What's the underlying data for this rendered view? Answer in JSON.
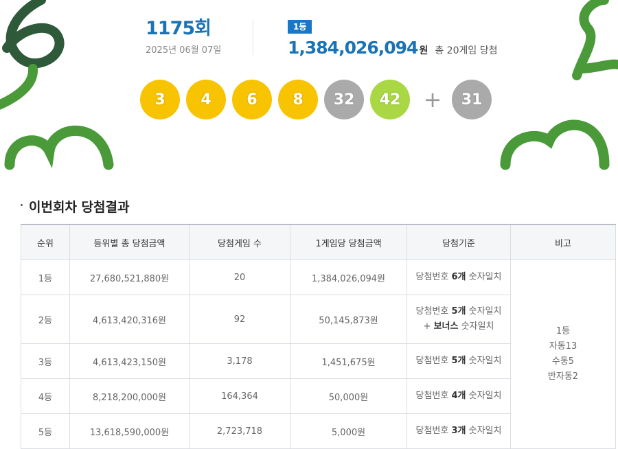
{
  "header": {
    "round_number": "1175",
    "round_suffix": "회",
    "draw_date": "2025년 06월 07일",
    "first_prize_badge": "1등",
    "first_prize_amount": "1,384,026,094",
    "first_prize_unit": "원",
    "first_prize_note": "총 20게임 당첨"
  },
  "balls": [
    {
      "number": "3",
      "color": "#f8c300"
    },
    {
      "number": "4",
      "color": "#f8c300"
    },
    {
      "number": "6",
      "color": "#f8c300"
    },
    {
      "number": "8",
      "color": "#f8c300"
    },
    {
      "number": "32",
      "color": "#aaaaaa"
    },
    {
      "number": "42",
      "color": "#a9d844"
    }
  ],
  "plus_symbol": "+",
  "bonus_ball": {
    "number": "31",
    "color": "#aaaaaa"
  },
  "section": {
    "title": "이번회차 당첨결과"
  },
  "table": {
    "headers": [
      "순위",
      "등위별 총 당첨금액",
      "당첨게임 수",
      "1게임당 당첨금액",
      "당첨기준",
      "비고"
    ],
    "rows": [
      {
        "rank": "1등",
        "total": "27,680,521,880원",
        "games": "20",
        "per_game": "1,384,026,094원",
        "criteria_prefix": "당첨번호 ",
        "criteria_bold": "6개",
        "criteria_suffix": " 숫자일치",
        "criteria_line2_prefix": "",
        "criteria_line2_bold": "",
        "criteria_line2_suffix": ""
      },
      {
        "rank": "2등",
        "total": "4,613,420,316원",
        "games": "92",
        "per_game": "50,145,873원",
        "criteria_prefix": "당첨번호 ",
        "criteria_bold": "5개",
        "criteria_suffix": " 숫자일치",
        "criteria_line2_prefix": "+ ",
        "criteria_line2_bold": "보너스",
        "criteria_line2_suffix": " 숫자일치"
      },
      {
        "rank": "3등",
        "total": "4,613,423,150원",
        "games": "3,178",
        "per_game": "1,451,675원",
        "criteria_prefix": "당첨번호 ",
        "criteria_bold": "5개",
        "criteria_suffix": " 숫자일치",
        "criteria_line2_prefix": "",
        "criteria_line2_bold": "",
        "criteria_line2_suffix": ""
      },
      {
        "rank": "4등",
        "total": "8,218,200,000원",
        "games": "164,364",
        "per_game": "50,000원",
        "criteria_prefix": "당첨번호 ",
        "criteria_bold": "4개",
        "criteria_suffix": " 숫자일치",
        "criteria_line2_prefix": "",
        "criteria_line2_bold": "",
        "criteria_line2_suffix": ""
      },
      {
        "rank": "5등",
        "total": "13,618,590,000원",
        "games": "2,723,718",
        "per_game": "5,000원",
        "criteria_prefix": "당첨번호 ",
        "criteria_bold": "3개",
        "criteria_suffix": " 숫자일치",
        "criteria_line2_prefix": "",
        "criteria_line2_bold": "",
        "criteria_line2_suffix": ""
      }
    ],
    "note_lines": [
      "1등",
      "자동13",
      "수동5",
      "반자동2"
    ]
  },
  "colors": {
    "accent_blue": "#1a73b5",
    "badge_blue": "#1976c8",
    "deco_dark_green": "#2f5a3a",
    "deco_green": "#4a9a3a"
  }
}
